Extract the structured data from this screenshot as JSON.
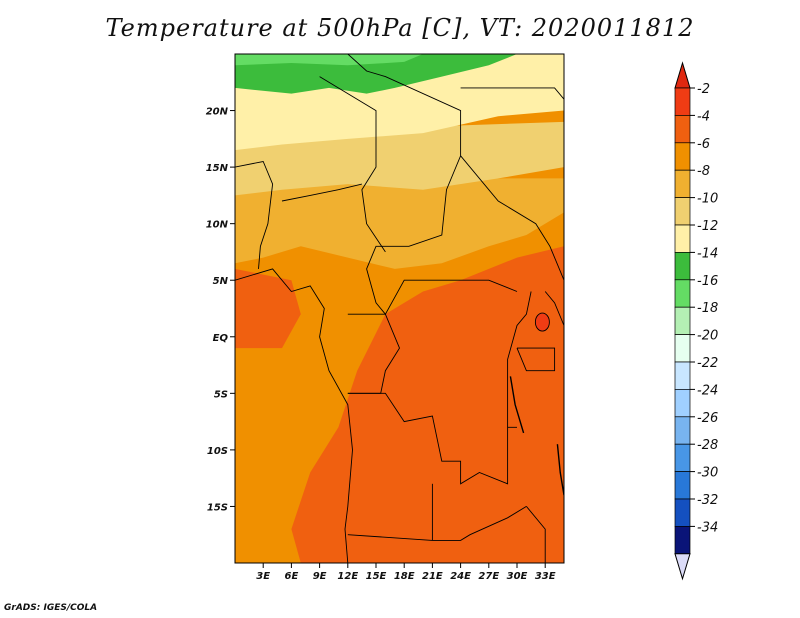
{
  "title": "Temperature at 500hPa [C], VT: 2020011812",
  "credit": "GrADS: IGES/COLA",
  "chart_data": {
    "type": "heatmap",
    "x_ticks": [
      "3E",
      "6E",
      "9E",
      "12E",
      "15E",
      "18E",
      "21E",
      "24E",
      "27E",
      "30E",
      "33E"
    ],
    "x_tick_values": [
      3,
      6,
      9,
      12,
      15,
      18,
      21,
      24,
      27,
      30,
      33
    ],
    "y_ticks": [
      "20N",
      "15N",
      "10N",
      "5N",
      "EQ",
      "5S",
      "10S",
      "15S"
    ],
    "y_tick_values": [
      20,
      15,
      10,
      5,
      0,
      -5,
      -10,
      -15
    ],
    "xlim": [
      0,
      35
    ],
    "ylim": [
      -20,
      25
    ],
    "colorbar": {
      "labels": [
        "-2",
        "-4",
        "-6",
        "-8",
        "-10",
        "-12",
        "-14",
        "-16",
        "-18",
        "-20",
        "-22",
        "-24",
        "-26",
        "-28",
        "-30",
        "-32",
        "-34"
      ],
      "colors": [
        "#f03c14",
        "#f06010",
        "#f09000",
        "#f0b030",
        "#f0d070",
        "#fff0a8",
        "#3cbc3c",
        "#64dc64",
        "#b4f0b4",
        "#e6fff0",
        "#c8e6ff",
        "#a0d0ff",
        "#78b4f0",
        "#4896e6",
        "#2878d8",
        "#1450c0",
        "#0a1478"
      ],
      "over_color": "#e02810",
      "under_color": "#dcdcf8"
    },
    "bands": [
      {
        "label": "-14 to -12",
        "color": "#3cbc3c",
        "lat_north": 25,
        "lat_south": 22
      },
      {
        "label": "-12 to -10",
        "color": "#fff0a8",
        "lat_north": 22,
        "lat_south": 17
      },
      {
        "label": "-10 to -8",
        "color": "#f0d070",
        "lat_north": 17,
        "lat_south": 13
      },
      {
        "label": "-8 to -6",
        "color": "#f0b030",
        "lat_north": 13,
        "lat_south": 8
      },
      {
        "label": "-6 to -4",
        "color": "#f09000",
        "lat_north": 8,
        "lat_south": -20
      },
      {
        "label": "-4 to -2",
        "color": "#f06010",
        "lat_north": 4,
        "lat_south": -20
      }
    ]
  }
}
